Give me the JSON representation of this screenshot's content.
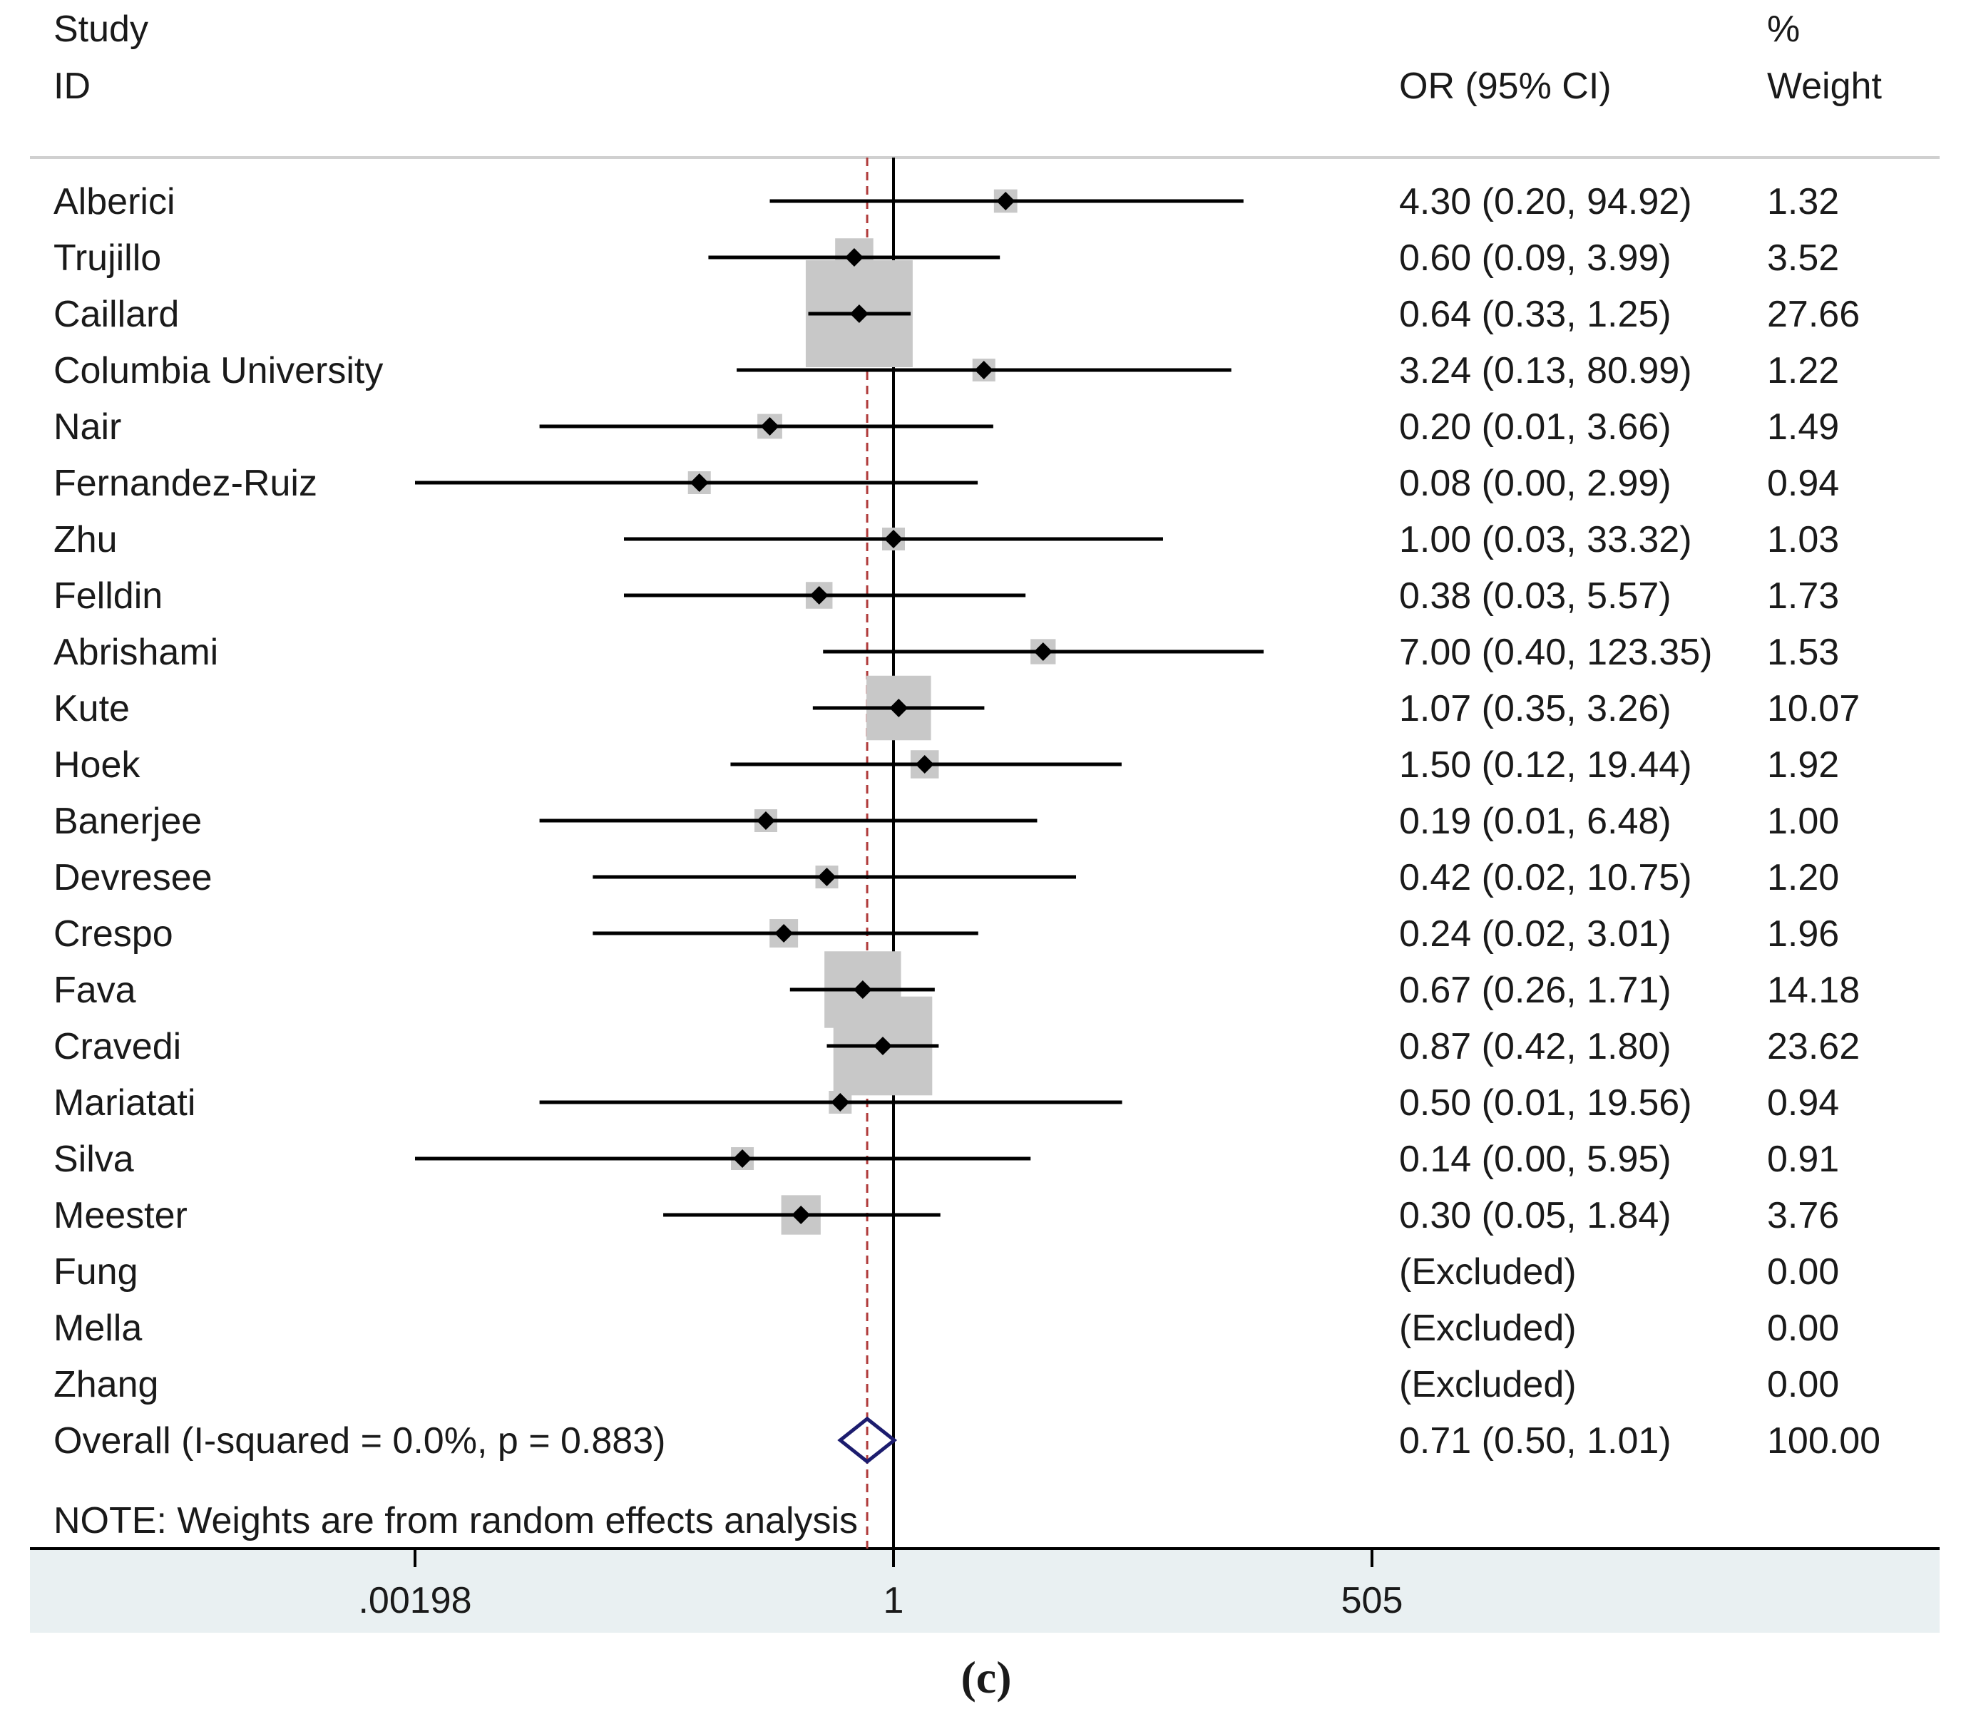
{
  "chart_data": {
    "type": "forest",
    "header": {
      "col1_line1": "Study",
      "col1_line2": "ID",
      "col2_line2": "OR (95% CI)",
      "col3_line1": "%",
      "col3_line2": "Weight"
    },
    "x_scale": "log",
    "x_ticks": [
      {
        "value": 0.00198,
        "label": ".00198"
      },
      {
        "value": 1,
        "label": "1"
      },
      {
        "value": 505,
        "label": "505"
      }
    ],
    "xlim": [
      0.00198,
      505
    ],
    "null_line": 1,
    "overall_line": 0.71,
    "studies": [
      {
        "name": "Alberici",
        "or": 4.3,
        "lo": 0.2,
        "hi": 94.92,
        "ci_text": "4.30 (0.20, 94.92)",
        "weight": 1.32,
        "weight_text": "1.32"
      },
      {
        "name": "Trujillo",
        "or": 0.6,
        "lo": 0.09,
        "hi": 3.99,
        "ci_text": "0.60 (0.09, 3.99)",
        "weight": 3.52,
        "weight_text": "3.52"
      },
      {
        "name": "Caillard",
        "or": 0.64,
        "lo": 0.33,
        "hi": 1.25,
        "ci_text": "0.64 (0.33, 1.25)",
        "weight": 27.66,
        "weight_text": "27.66"
      },
      {
        "name": "Columbia University",
        "or": 3.24,
        "lo": 0.13,
        "hi": 80.99,
        "ci_text": "3.24 (0.13, 80.99)",
        "weight": 1.22,
        "weight_text": "1.22"
      },
      {
        "name": "Nair",
        "or": 0.2,
        "lo": 0.01,
        "hi": 3.66,
        "ci_text": "0.20 (0.01, 3.66)",
        "weight": 1.49,
        "weight_text": "1.49"
      },
      {
        "name": "Fernandez-Ruiz",
        "or": 0.08,
        "lo": 0.0,
        "hi": 2.99,
        "ci_text": "0.08 (0.00, 2.99)",
        "weight": 0.94,
        "weight_text": "0.94"
      },
      {
        "name": "Zhu",
        "or": 1.0,
        "lo": 0.03,
        "hi": 33.32,
        "ci_text": "1.00 (0.03, 33.32)",
        "weight": 1.03,
        "weight_text": "1.03"
      },
      {
        "name": "Felldin",
        "or": 0.38,
        "lo": 0.03,
        "hi": 5.57,
        "ci_text": "0.38 (0.03, 5.57)",
        "weight": 1.73,
        "weight_text": "1.73"
      },
      {
        "name": "Abrishami",
        "or": 7.0,
        "lo": 0.4,
        "hi": 123.35,
        "ci_text": "7.00 (0.40, 123.35)",
        "weight": 1.53,
        "weight_text": "1.53"
      },
      {
        "name": "Kute",
        "or": 1.07,
        "lo": 0.35,
        "hi": 3.26,
        "ci_text": "1.07 (0.35, 3.26)",
        "weight": 10.07,
        "weight_text": "10.07"
      },
      {
        "name": "Hoek",
        "or": 1.5,
        "lo": 0.12,
        "hi": 19.44,
        "ci_text": "1.50 (0.12, 19.44)",
        "weight": 1.92,
        "weight_text": "1.92"
      },
      {
        "name": "Banerjee",
        "or": 0.19,
        "lo": 0.01,
        "hi": 6.48,
        "ci_text": "0.19 (0.01, 6.48)",
        "weight": 1.0,
        "weight_text": "1.00"
      },
      {
        "name": "Devresee",
        "or": 0.42,
        "lo": 0.02,
        "hi": 10.75,
        "ci_text": "0.42 (0.02, 10.75)",
        "weight": 1.2,
        "weight_text": "1.20"
      },
      {
        "name": "Crespo",
        "or": 0.24,
        "lo": 0.02,
        "hi": 3.01,
        "ci_text": "0.24 (0.02, 3.01)",
        "weight": 1.96,
        "weight_text": "1.96"
      },
      {
        "name": "Fava",
        "or": 0.67,
        "lo": 0.26,
        "hi": 1.71,
        "ci_text": "0.67 (0.26, 1.71)",
        "weight": 14.18,
        "weight_text": "14.18"
      },
      {
        "name": "Cravedi",
        "or": 0.87,
        "lo": 0.42,
        "hi": 1.8,
        "ci_text": "0.87 (0.42, 1.80)",
        "weight": 23.62,
        "weight_text": "23.62"
      },
      {
        "name": "Mariatati",
        "or": 0.5,
        "lo": 0.01,
        "hi": 19.56,
        "ci_text": "0.50 (0.01, 19.56)",
        "weight": 0.94,
        "weight_text": "0.94"
      },
      {
        "name": "Silva",
        "or": 0.14,
        "lo": 0.0,
        "hi": 5.95,
        "ci_text": "0.14 (0.00, 5.95)",
        "weight": 0.91,
        "weight_text": "0.91"
      },
      {
        "name": "Meester",
        "or": 0.3,
        "lo": 0.05,
        "hi": 1.84,
        "ci_text": "0.30 (0.05, 1.84)",
        "weight": 3.76,
        "weight_text": "3.76"
      },
      {
        "name": "Fung",
        "or": null,
        "lo": null,
        "hi": null,
        "ci_text": "(Excluded)",
        "weight": 0.0,
        "weight_text": "0.00"
      },
      {
        "name": "Mella",
        "or": null,
        "lo": null,
        "hi": null,
        "ci_text": "(Excluded)",
        "weight": 0.0,
        "weight_text": "0.00"
      },
      {
        "name": "Zhang",
        "or": null,
        "lo": null,
        "hi": null,
        "ci_text": "(Excluded)",
        "weight": 0.0,
        "weight_text": "0.00"
      }
    ],
    "overall": {
      "label": "Overall  (I-squared = 0.0%, p = 0.883)",
      "or": 0.71,
      "lo": 0.5,
      "hi": 1.01,
      "ci_text": "0.71 (0.50, 1.01)",
      "weight_text": "100.00"
    },
    "note": "NOTE: Weights are from random effects analysis",
    "caption": "(c)",
    "colors": {
      "text": "#1a1a1a",
      "ci_line": "#000000",
      "weight_box": "#c8c8c8",
      "null_line": "#000000",
      "overall_line": "#b03a3a",
      "diamond": "#1c1c6e",
      "axis_band": "#e9f0f2",
      "header_rule": "#d0d0d0"
    }
  }
}
